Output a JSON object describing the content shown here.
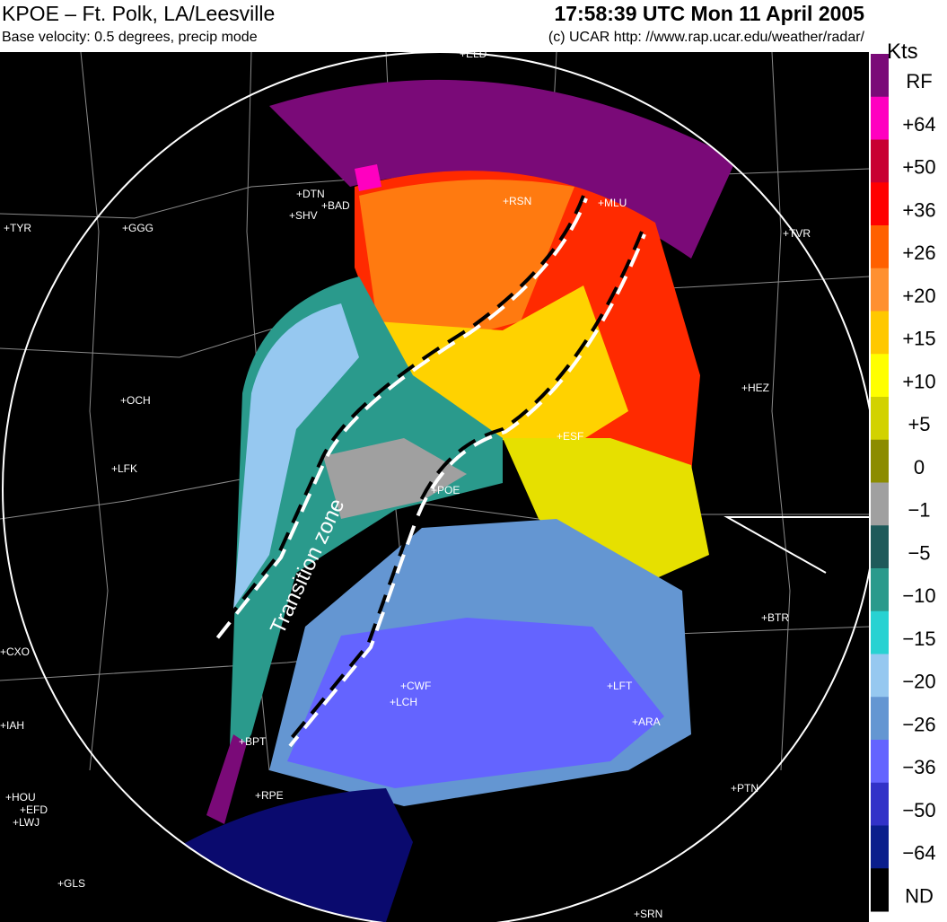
{
  "header": {
    "title": "KPOE – Ft. Polk, LA/Leesville",
    "timestamp": "17:58:39 UTC Mon 11 April 2005",
    "subtitle": "Base velocity: 0.5 degrees, precip mode",
    "credit": "(c) UCAR http: //www.rap.ucar.edu/weather/radar/"
  },
  "legend": {
    "unit": "Kts",
    "items": [
      {
        "label": "RF",
        "color": "#7a0a78"
      },
      {
        "label": "+64",
        "color": "#ff00c0"
      },
      {
        "label": "+50",
        "color": "#c80032"
      },
      {
        "label": "+36",
        "color": "#ff0000"
      },
      {
        "label": "+26",
        "color": "#ff6000"
      },
      {
        "label": "+20",
        "color": "#ff9030"
      },
      {
        "label": "+15",
        "color": "#ffc800"
      },
      {
        "label": "+10",
        "color": "#ffff00"
      },
      {
        "label": "+5",
        "color": "#d2d200"
      },
      {
        "label": "0",
        "color": "#8c8c00"
      },
      {
        "label": "−1",
        "color": "#a0a0a0"
      },
      {
        "label": "−5",
        "color": "#1e5a5a"
      },
      {
        "label": "−10",
        "color": "#2a9a8c"
      },
      {
        "label": "−15",
        "color": "#28d2d2"
      },
      {
        "label": "−20",
        "color": "#96c8f0"
      },
      {
        "label": "−26",
        "color": "#6496d2"
      },
      {
        "label": "−36",
        "color": "#6464ff"
      },
      {
        "label": "−50",
        "color": "#3232c8"
      },
      {
        "label": "−64",
        "color": "#0a1e8c"
      },
      {
        "label": "ND",
        "color": "#000000"
      }
    ]
  },
  "map": {
    "annotation": "Transition zone",
    "stations": [
      "+ELD",
      "+DTN",
      "+BAD",
      "+SHV",
      "+TYR",
      "+GGG",
      "+RSN",
      "+MLU",
      "+TVR",
      "+OCH",
      "+LFK",
      "+HEZ",
      "+ESF",
      "+POE",
      "+BTR",
      "+CXO",
      "+IAH",
      "+BPT",
      "+CWF",
      "+LCH",
      "+LFT",
      "+ARA",
      "+PTN",
      "+HOU",
      "+EFD",
      "+LWJ",
      "+GLS",
      "+RPE",
      "+SRN"
    ]
  }
}
